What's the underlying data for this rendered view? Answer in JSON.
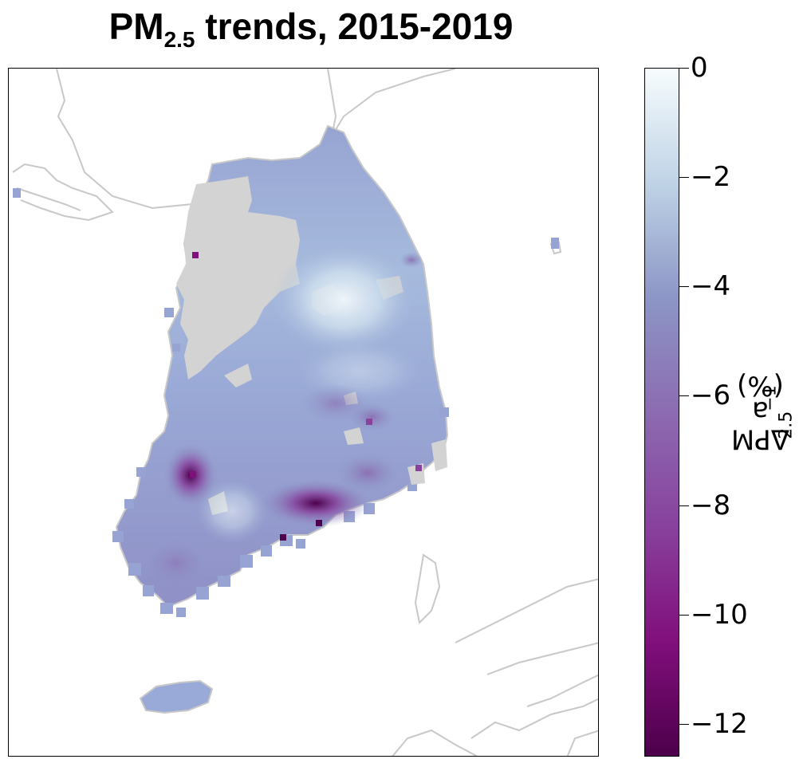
{
  "title": {
    "prefix": "PM",
    "subscript": "2.5",
    "suffix": " trends, 2015-2019"
  },
  "colorbar": {
    "label_prefix": "ΔPM",
    "label_subscript": "2.5",
    "label_middle": " a",
    "label_superscript": "−1",
    "label_suffix": " (%)",
    "min": -12.6,
    "max": 0,
    "ticks": [
      {
        "value": 0,
        "label": "0"
      },
      {
        "value": -2,
        "label": "−2"
      },
      {
        "value": -4,
        "label": "−4"
      },
      {
        "value": -6,
        "label": "−6"
      },
      {
        "value": -8,
        "label": "−8"
      },
      {
        "value": -10,
        "label": "−10"
      },
      {
        "value": -12,
        "label": "−12"
      }
    ],
    "colors": [
      "#f7fcfd",
      "#bfd3e6",
      "#8c96c6",
      "#8c6bb1",
      "#88419d",
      "#810f7c",
      "#4d004b"
    ]
  },
  "map": {
    "region_color_missing": "#d3d3d3",
    "coastline_color": "#c8c8c8"
  }
}
